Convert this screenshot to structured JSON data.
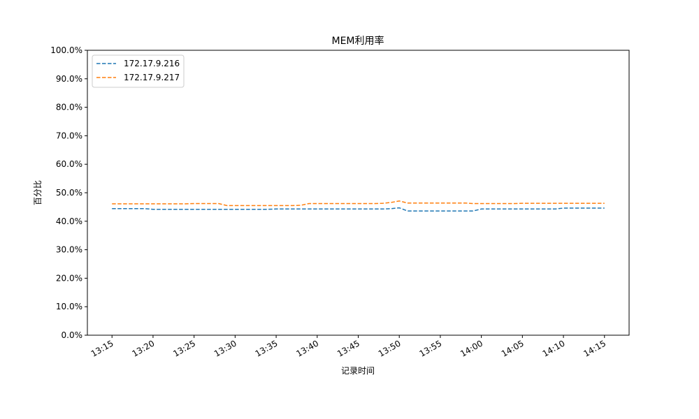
{
  "chart_data": {
    "type": "line",
    "title": "MEM利用率",
    "xlabel": "记录时间",
    "ylabel": "百分比",
    "ylim": [
      0,
      100
    ],
    "yticks": [
      0,
      10,
      20,
      30,
      40,
      50,
      60,
      70,
      80,
      90,
      100
    ],
    "ytick_labels": [
      "0.0%",
      "10.0%",
      "20.0%",
      "30.0%",
      "40.0%",
      "50.0%",
      "60.0%",
      "70.0%",
      "80.0%",
      "90.0%",
      "100.0%"
    ],
    "xlim": [
      "13:12",
      "14:18"
    ],
    "xtick_labels": [
      "13:15",
      "13:20",
      "13:25",
      "13:30",
      "13:35",
      "13:40",
      "13:45",
      "13:50",
      "13:55",
      "14:00",
      "14:05",
      "14:10",
      "14:15"
    ],
    "x": [
      "13:15",
      "13:16",
      "13:17",
      "13:18",
      "13:19",
      "13:20",
      "13:21",
      "13:22",
      "13:23",
      "13:24",
      "13:25",
      "13:26",
      "13:27",
      "13:28",
      "13:29",
      "13:30",
      "13:31",
      "13:32",
      "13:33",
      "13:34",
      "13:35",
      "13:36",
      "13:37",
      "13:38",
      "13:39",
      "13:40",
      "13:41",
      "13:42",
      "13:43",
      "13:44",
      "13:45",
      "13:46",
      "13:47",
      "13:48",
      "13:49",
      "13:50",
      "13:51",
      "13:52",
      "13:53",
      "13:54",
      "13:55",
      "13:56",
      "13:57",
      "13:58",
      "13:59",
      "14:00",
      "14:01",
      "14:02",
      "14:03",
      "14:04",
      "14:05",
      "14:06",
      "14:07",
      "14:08",
      "14:09",
      "14:10",
      "14:11",
      "14:12",
      "14:13",
      "14:14",
      "14:15"
    ],
    "series": [
      {
        "name": "172.17.9.216",
        "color": "#1f77b4",
        "style": "dashed",
        "values": [
          44.4,
          44.4,
          44.4,
          44.4,
          44.4,
          44.2,
          44.2,
          44.2,
          44.2,
          44.2,
          44.2,
          44.2,
          44.2,
          44.2,
          44.2,
          44.2,
          44.2,
          44.2,
          44.2,
          44.2,
          44.3,
          44.3,
          44.3,
          44.3,
          44.3,
          44.3,
          44.3,
          44.3,
          44.3,
          44.3,
          44.3,
          44.3,
          44.3,
          44.3,
          44.4,
          44.7,
          43.6,
          43.6,
          43.6,
          43.6,
          43.6,
          43.6,
          43.6,
          43.6,
          43.6,
          44.3,
          44.3,
          44.3,
          44.3,
          44.3,
          44.3,
          44.3,
          44.3,
          44.3,
          44.3,
          44.6,
          44.6,
          44.6,
          44.6,
          44.6,
          44.6
        ]
      },
      {
        "name": "172.17.9.217",
        "color": "#ff7f0e",
        "style": "dashed",
        "values": [
          46.1,
          46.1,
          46.1,
          46.1,
          46.1,
          46.1,
          46.1,
          46.1,
          46.1,
          46.1,
          46.2,
          46.2,
          46.2,
          46.2,
          45.5,
          45.5,
          45.5,
          45.5,
          45.5,
          45.5,
          45.5,
          45.5,
          45.5,
          45.6,
          46.2,
          46.2,
          46.2,
          46.2,
          46.2,
          46.2,
          46.2,
          46.2,
          46.2,
          46.3,
          46.6,
          47.1,
          46.4,
          46.4,
          46.4,
          46.4,
          46.4,
          46.4,
          46.4,
          46.4,
          46.2,
          46.2,
          46.2,
          46.2,
          46.2,
          46.2,
          46.3,
          46.3,
          46.3,
          46.3,
          46.3,
          46.3,
          46.3,
          46.3,
          46.3,
          46.3,
          46.3
        ]
      }
    ],
    "grid": false,
    "legend_position": "top-left"
  }
}
